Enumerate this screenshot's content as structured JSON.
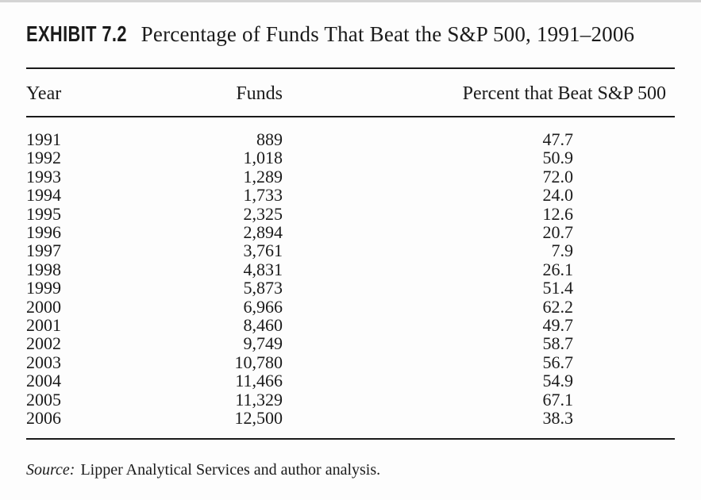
{
  "header": {
    "exhibit_label": "EXHIBIT 7.2",
    "title": "Percentage of Funds That Beat the S&P 500, 1991–2006"
  },
  "table": {
    "columns": [
      "Year",
      "Funds",
      "Percent that Beat S&P 500"
    ],
    "rows": [
      {
        "year": "1991",
        "funds": "889",
        "percent": "47.7"
      },
      {
        "year": "1992",
        "funds": "1,018",
        "percent": "50.9"
      },
      {
        "year": "1993",
        "funds": "1,289",
        "percent": "72.0"
      },
      {
        "year": "1994",
        "funds": "1,733",
        "percent": "24.0"
      },
      {
        "year": "1995",
        "funds": "2,325",
        "percent": "12.6"
      },
      {
        "year": "1996",
        "funds": "2,894",
        "percent": "20.7"
      },
      {
        "year": "1997",
        "funds": "3,761",
        "percent": "7.9"
      },
      {
        "year": "1998",
        "funds": "4,831",
        "percent": "26.1"
      },
      {
        "year": "1999",
        "funds": "5,873",
        "percent": "51.4"
      },
      {
        "year": "2000",
        "funds": "6,966",
        "percent": "62.2"
      },
      {
        "year": "2001",
        "funds": "8,460",
        "percent": "49.7"
      },
      {
        "year": "2002",
        "funds": "9,749",
        "percent": "58.7"
      },
      {
        "year": "2003",
        "funds": "10,780",
        "percent": "56.7"
      },
      {
        "year": "2004",
        "funds": "11,466",
        "percent": "54.9"
      },
      {
        "year": "2005",
        "funds": "11,329",
        "percent": "67.1"
      },
      {
        "year": "2006",
        "funds": "12,500",
        "percent": "38.3"
      }
    ]
  },
  "footer": {
    "source_label": "Source:",
    "source_text": "Lipper Analytical Services and author analysis."
  },
  "colors": {
    "rule": "#1a1a1a",
    "text": "#1b1b1b",
    "page_edge": "#d4d4d4",
    "background": "#fdfdfd"
  }
}
